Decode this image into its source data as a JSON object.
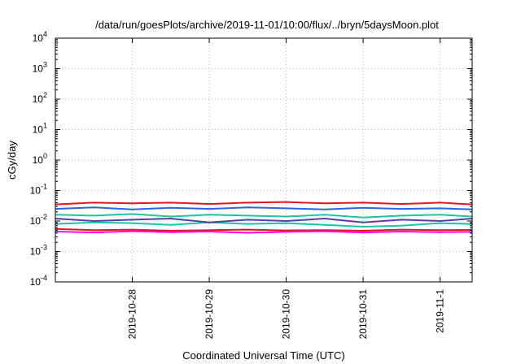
{
  "chart_data": {
    "type": "line",
    "title": "/data/run/goesPlots/archive/2019-11-01/10:00/flux/../bryn/5daysMoon.plot",
    "xlabel": "Coordinated Universal Time (UTC)",
    "ylabel": "cGy/day",
    "yscale": "log",
    "ylim": [
      0.0001,
      10000
    ],
    "xlim": [
      "2019-10-27 00:00",
      "2019-11-01 10:00"
    ],
    "grid": true,
    "x_ticks": [
      "2019-10-28",
      "2019-10-29",
      "2019-10-30",
      "2019-10-31",
      "2019-11-1"
    ],
    "y_ticks": [
      {
        "value": 0.0001,
        "base": "10",
        "exp": "-4"
      },
      {
        "value": 0.001,
        "base": "10",
        "exp": "-3"
      },
      {
        "value": 0.01,
        "base": "10",
        "exp": "-2"
      },
      {
        "value": 0.1,
        "base": "10",
        "exp": "-1"
      },
      {
        "value": 1,
        "base": "10",
        "exp": "0"
      },
      {
        "value": 10,
        "base": "10",
        "exp": "1"
      },
      {
        "value": 100,
        "base": "10",
        "exp": "2"
      },
      {
        "value": 1000,
        "base": "10",
        "exp": "3"
      },
      {
        "value": 10000,
        "base": "10",
        "exp": "4"
      }
    ],
    "x": [
      "2019-10-27 00:00",
      "2019-10-27 12:00",
      "2019-10-28 00:00",
      "2019-10-28 12:00",
      "2019-10-29 00:00",
      "2019-10-29 12:00",
      "2019-10-30 00:00",
      "2019-10-30 12:00",
      "2019-10-31 00:00",
      "2019-10-31 12:00",
      "2019-11-01 00:00",
      "2019-11-01 10:00"
    ],
    "series": [
      {
        "color": "#e8141c",
        "values": [
          0.035,
          0.04,
          0.038,
          0.04,
          0.036,
          0.04,
          0.042,
          0.038,
          0.04,
          0.036,
          0.04,
          0.035
        ]
      },
      {
        "color": "#2a66e0",
        "values": [
          0.025,
          0.028,
          0.024,
          0.027,
          0.025,
          0.028,
          0.026,
          0.024,
          0.027,
          0.025,
          0.026,
          0.024
        ]
      },
      {
        "color": "#1fc3a0",
        "values": [
          0.016,
          0.015,
          0.017,
          0.014,
          0.016,
          0.015,
          0.014,
          0.016,
          0.013,
          0.015,
          0.016,
          0.014
        ]
      },
      {
        "color": "#1fc3a0",
        "values": [
          0.008,
          0.009,
          0.0085,
          0.0075,
          0.009,
          0.008,
          0.0085,
          0.0075,
          0.0065,
          0.007,
          0.0085,
          0.008
        ]
      },
      {
        "color": "#5a3fa0",
        "values": [
          0.012,
          0.01,
          0.011,
          0.012,
          0.009,
          0.011,
          0.01,
          0.012,
          0.009,
          0.011,
          0.01,
          0.012
        ]
      },
      {
        "color": "#e8141c",
        "values": [
          0.0055,
          0.005,
          0.0052,
          0.0048,
          0.005,
          0.0052,
          0.0049,
          0.005,
          0.0048,
          0.0052,
          0.005,
          0.0051
        ]
      },
      {
        "color": "#ff00ff",
        "values": [
          0.0045,
          0.0042,
          0.0046,
          0.0043,
          0.0045,
          0.0041,
          0.0044,
          0.0046,
          0.0042,
          0.0045,
          0.0043,
          0.0044
        ]
      }
    ]
  }
}
